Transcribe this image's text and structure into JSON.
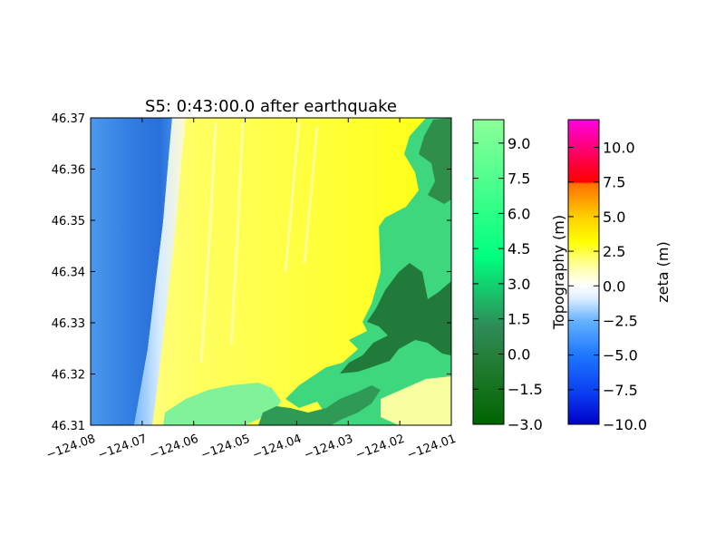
{
  "chart_data": {
    "type": "heatmap",
    "title": "S5: 0:43:00.0 after earthquake",
    "xlim": [
      -124.08,
      -124.01
    ],
    "ylim": [
      46.31,
      46.37
    ],
    "xticks": [
      -124.08,
      -124.07,
      -124.06,
      -124.05,
      -124.04,
      -124.03,
      -124.02,
      -124.01
    ],
    "xtick_labels": [
      "−124.08",
      "−124.07",
      "−124.06",
      "−124.05",
      "−124.04",
      "−124.03",
      "−124.02",
      "−124.01"
    ],
    "yticks": [
      46.31,
      46.32,
      46.33,
      46.34,
      46.35,
      46.36,
      46.37
    ],
    "ytick_labels": [
      "46.31",
      "46.32",
      "46.33",
      "46.34",
      "46.35",
      "46.36",
      "46.37"
    ],
    "colorbars": [
      {
        "label": "Topography (m)",
        "range": [
          -3.0,
          10.0
        ],
        "ticks": [
          -3.0,
          -1.5,
          0.0,
          1.5,
          3.0,
          4.5,
          6.0,
          7.5,
          9.0
        ],
        "tick_labels": [
          "−3.0",
          "−1.5",
          "0.0",
          "1.5",
          "3.0",
          "4.5",
          "6.0",
          "7.5",
          "9.0"
        ],
        "colors": [
          "#006400",
          "#2e8b57",
          "#00ff7f",
          "#7fff9f"
        ]
      },
      {
        "label": "zeta (m)",
        "range": [
          -10.0,
          12.0
        ],
        "ticks": [
          -10.0,
          -7.5,
          -5.0,
          -2.5,
          0.0,
          2.5,
          5.0,
          7.5,
          10.0
        ],
        "tick_labels": [
          "−10.0",
          "−7.5",
          "−5.0",
          "−2.5",
          "0.0",
          "2.5",
          "5.0",
          "7.5",
          "10.0"
        ],
        "colors": [
          "#0000c8",
          "#1e6eff",
          "#40a0ff",
          "#ffffff",
          "#ffff80",
          "#ffff00",
          "#ffcc00",
          "#ff8000",
          "#ff0000",
          "#ff00dd"
        ]
      }
    ],
    "layers": [
      {
        "name": "ocean",
        "zeta_m": [
          -7.5,
          -4.0
        ],
        "color": "#2f7be0"
      },
      {
        "name": "surf zone",
        "zeta_m": [
          -2.0,
          0.5
        ],
        "color": "#cfe8ff"
      },
      {
        "name": "inundated land",
        "zeta_m": [
          1.0,
          3.5
        ],
        "color": "#ffff30"
      },
      {
        "name": "dry land",
        "topography_m": [
          -3.0,
          10.0
        ],
        "color": "#3fcf7a"
      }
    ]
  }
}
